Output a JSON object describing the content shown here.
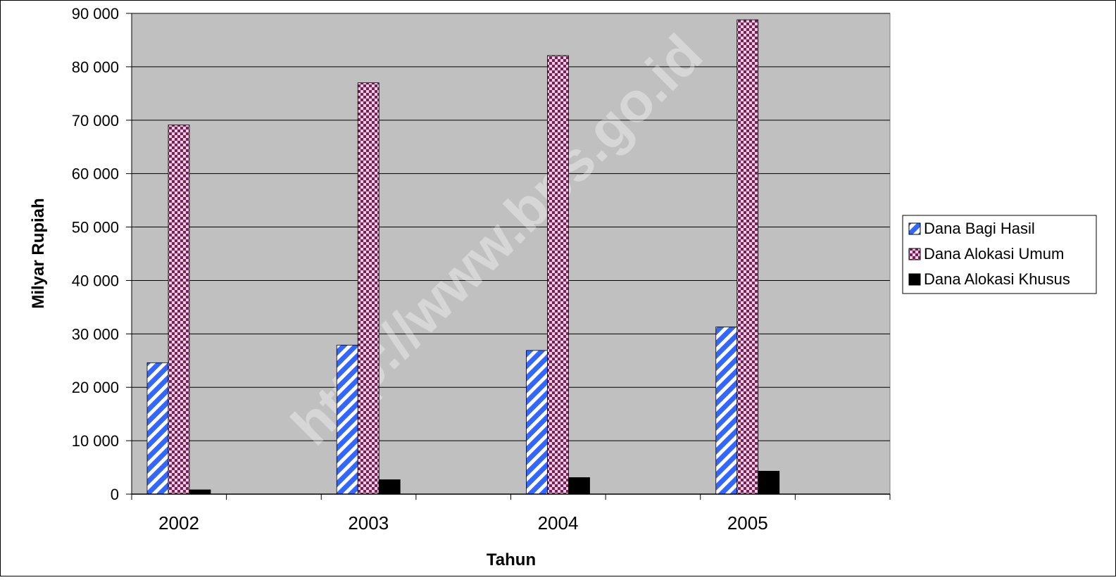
{
  "watermark": "http://www.bps.go.id",
  "chart_data": {
    "type": "bar",
    "xlabel": "Tahun",
    "ylabel": "Milyar Rupiah",
    "ylim": [
      0,
      90000
    ],
    "yticks": [
      0,
      10000,
      20000,
      30000,
      40000,
      50000,
      60000,
      70000,
      80000,
      90000
    ],
    "ytick_labels": [
      "0",
      "10 000",
      "20 000",
      "30 000",
      "40 000",
      "50 000",
      "60 000",
      "70 000",
      "80 000",
      "90 000"
    ],
    "categories": [
      "2002",
      "2003",
      "2004",
      "2005"
    ],
    "grid": true,
    "legend_position": "right",
    "plot_background": "#c0c0c0",
    "series": [
      {
        "name": "Dana Bagi Hasil",
        "values": [
          24600,
          27900,
          26900,
          31300
        ],
        "color": "#3366ff",
        "pattern": "diagonal-stripes"
      },
      {
        "name": "Dana Alokasi Umum",
        "values": [
          69100,
          77000,
          82100,
          88800
        ],
        "color": "#7b1f5a",
        "pattern": "checker"
      },
      {
        "name": "Dana Alokasi Khusus",
        "values": [
          800,
          2700,
          3100,
          4300
        ],
        "color": "#000000",
        "pattern": "solid"
      }
    ]
  }
}
